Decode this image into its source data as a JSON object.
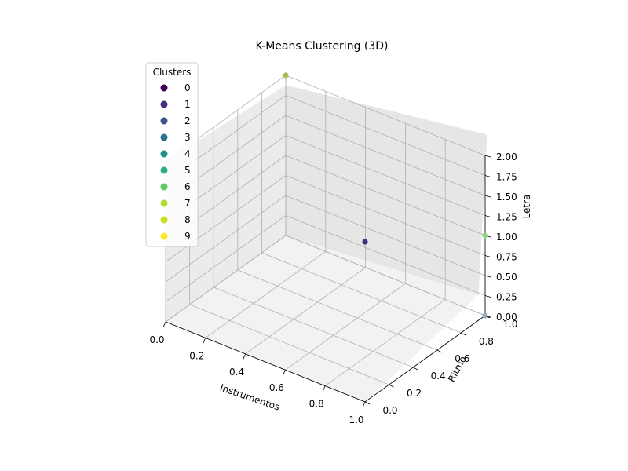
{
  "chart_data": {
    "type": "scatter",
    "projection": "3d",
    "title": "K-Means Clustering (3D)",
    "xlabel": "Instrumentos",
    "ylabel": "Ritmo",
    "zlabel": "Letra",
    "xlim": [
      0.0,
      1.0
    ],
    "ylim": [
      0.0,
      1.0
    ],
    "zlim": [
      0.0,
      2.0
    ],
    "x_ticks": [
      "0.0",
      "0.2",
      "0.4",
      "0.6",
      "0.8",
      "1.0"
    ],
    "y_ticks": [
      "0.0",
      "0.2",
      "0.4",
      "0.6",
      "0.8",
      "1.0"
    ],
    "z_ticks": [
      "0.00",
      "0.25",
      "0.50",
      "0.75",
      "1.00",
      "1.25",
      "1.50",
      "1.75",
      "2.00"
    ],
    "grid": true,
    "legend": {
      "title": "Clusters",
      "placement": "upper-left",
      "entries": [
        {
          "label": "0",
          "color": "#440154"
        },
        {
          "label": "1",
          "color": "#472d7b"
        },
        {
          "label": "2",
          "color": "#3b528b"
        },
        {
          "label": "3",
          "color": "#2c728e"
        },
        {
          "label": "4",
          "color": "#21918c"
        },
        {
          "label": "5",
          "color": "#28ae80"
        },
        {
          "label": "6",
          "color": "#5ec962"
        },
        {
          "label": "7",
          "color": "#addc30"
        },
        {
          "label": "8",
          "color": "#c8e020"
        },
        {
          "label": "9",
          "color": "#fde725"
        }
      ]
    },
    "points": [
      {
        "x": 0.0,
        "y": 1.0,
        "z": 2.0,
        "cluster": "8",
        "color": "#a4be58"
      },
      {
        "x": 1.0,
        "y": 0.0,
        "z": 2.0,
        "cluster": "1",
        "color": "#472d7b"
      },
      {
        "x": 1.0,
        "y": 1.0,
        "z": 1.0,
        "cluster": "7",
        "color": "#8fd483"
      },
      {
        "x": 1.0,
        "y": 1.0,
        "z": 0.0,
        "cluster": "3",
        "color": "#92aabf"
      }
    ]
  }
}
